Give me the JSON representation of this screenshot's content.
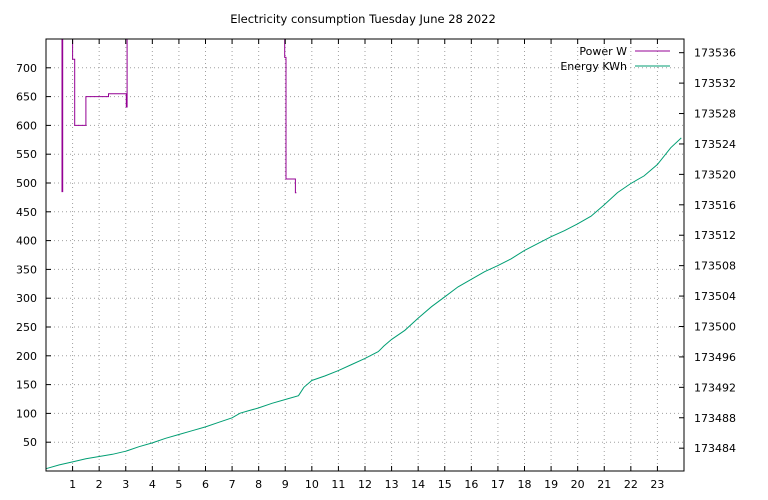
{
  "chart_data": {
    "type": "line",
    "title": "Electricity consumption Tuesday June 28 2022",
    "xlabel": "",
    "ylabel": "",
    "y2label": "",
    "xlim": [
      0,
      24
    ],
    "xticks": [
      1,
      2,
      3,
      4,
      5,
      6,
      7,
      8,
      9,
      10,
      11,
      12,
      13,
      14,
      15,
      16,
      17,
      18,
      19,
      20,
      21,
      22,
      23
    ],
    "ylim": [
      0,
      750
    ],
    "yticks": [
      50,
      100,
      150,
      200,
      250,
      300,
      350,
      400,
      450,
      500,
      550,
      600,
      650,
      700
    ],
    "y2lim": [
      173481.0,
      173537.8
    ],
    "y2ticks": [
      173484,
      173488,
      173492,
      173496,
      173500,
      173504,
      173508,
      173512,
      173516,
      173520,
      173524,
      173528,
      173532,
      173536
    ],
    "grid": true,
    "legend_position": "top-right",
    "series": [
      {
        "name": "Power W",
        "color": "#940094",
        "axis": "left",
        "step": true,
        "x": [
          0.6,
          0.6,
          0.63,
          0.63,
          1.0,
          1.0,
          1.08,
          1.08,
          1.15,
          1.15,
          1.5,
          1.5,
          2.35,
          2.35,
          3.02,
          3.02,
          3.05,
          3.05,
          8.98,
          8.98,
          9.03,
          9.03,
          9.38,
          9.38,
          9.42
        ],
        "y": [
          750,
          485,
          485,
          750,
          750,
          715,
          715,
          600,
          600,
          600,
          600,
          650,
          650,
          655,
          655,
          632,
          632,
          750,
          750,
          718,
          718,
          507,
          507,
          483,
          483
        ]
      },
      {
        "name": "Energy KWh",
        "color": "#009e73",
        "axis": "right",
        "step": false,
        "x": [
          0,
          0.5,
          1,
          1.5,
          2,
          2.5,
          3,
          3.5,
          4,
          4.5,
          5,
          5.5,
          6,
          6.5,
          7,
          7.3,
          7.6,
          8,
          8.5,
          9,
          9.5,
          9.7,
          10,
          10.5,
          11,
          11.5,
          12,
          12.5,
          12.7,
          13,
          13.5,
          14,
          14.5,
          15,
          15.5,
          16,
          16.5,
          17,
          17.5,
          18,
          18.5,
          19,
          19.5,
          20,
          20.5,
          21,
          21.5,
          22,
          22.5,
          23,
          23.5,
          23.9
        ],
        "y": [
          173481.3,
          173481.8,
          173482.2,
          173482.6,
          173482.9,
          173483.2,
          173483.6,
          173484.2,
          173484.7,
          173485.3,
          173485.8,
          173486.3,
          173486.8,
          173487.4,
          173488.0,
          173488.6,
          173488.9,
          173489.3,
          173489.9,
          173490.4,
          173490.9,
          173492.0,
          173492.9,
          173493.5,
          173494.2,
          173495.0,
          173495.8,
          173496.7,
          173497.4,
          173498.3,
          173499.5,
          173501.1,
          173502.6,
          173503.9,
          173505.2,
          173506.2,
          173507.2,
          173508.0,
          173508.9,
          173510.0,
          173510.9,
          173511.8,
          173512.6,
          173513.5,
          173514.5,
          173516.0,
          173517.6,
          173518.8,
          173519.8,
          173521.3,
          173523.5,
          173524.8
        ]
      }
    ]
  }
}
